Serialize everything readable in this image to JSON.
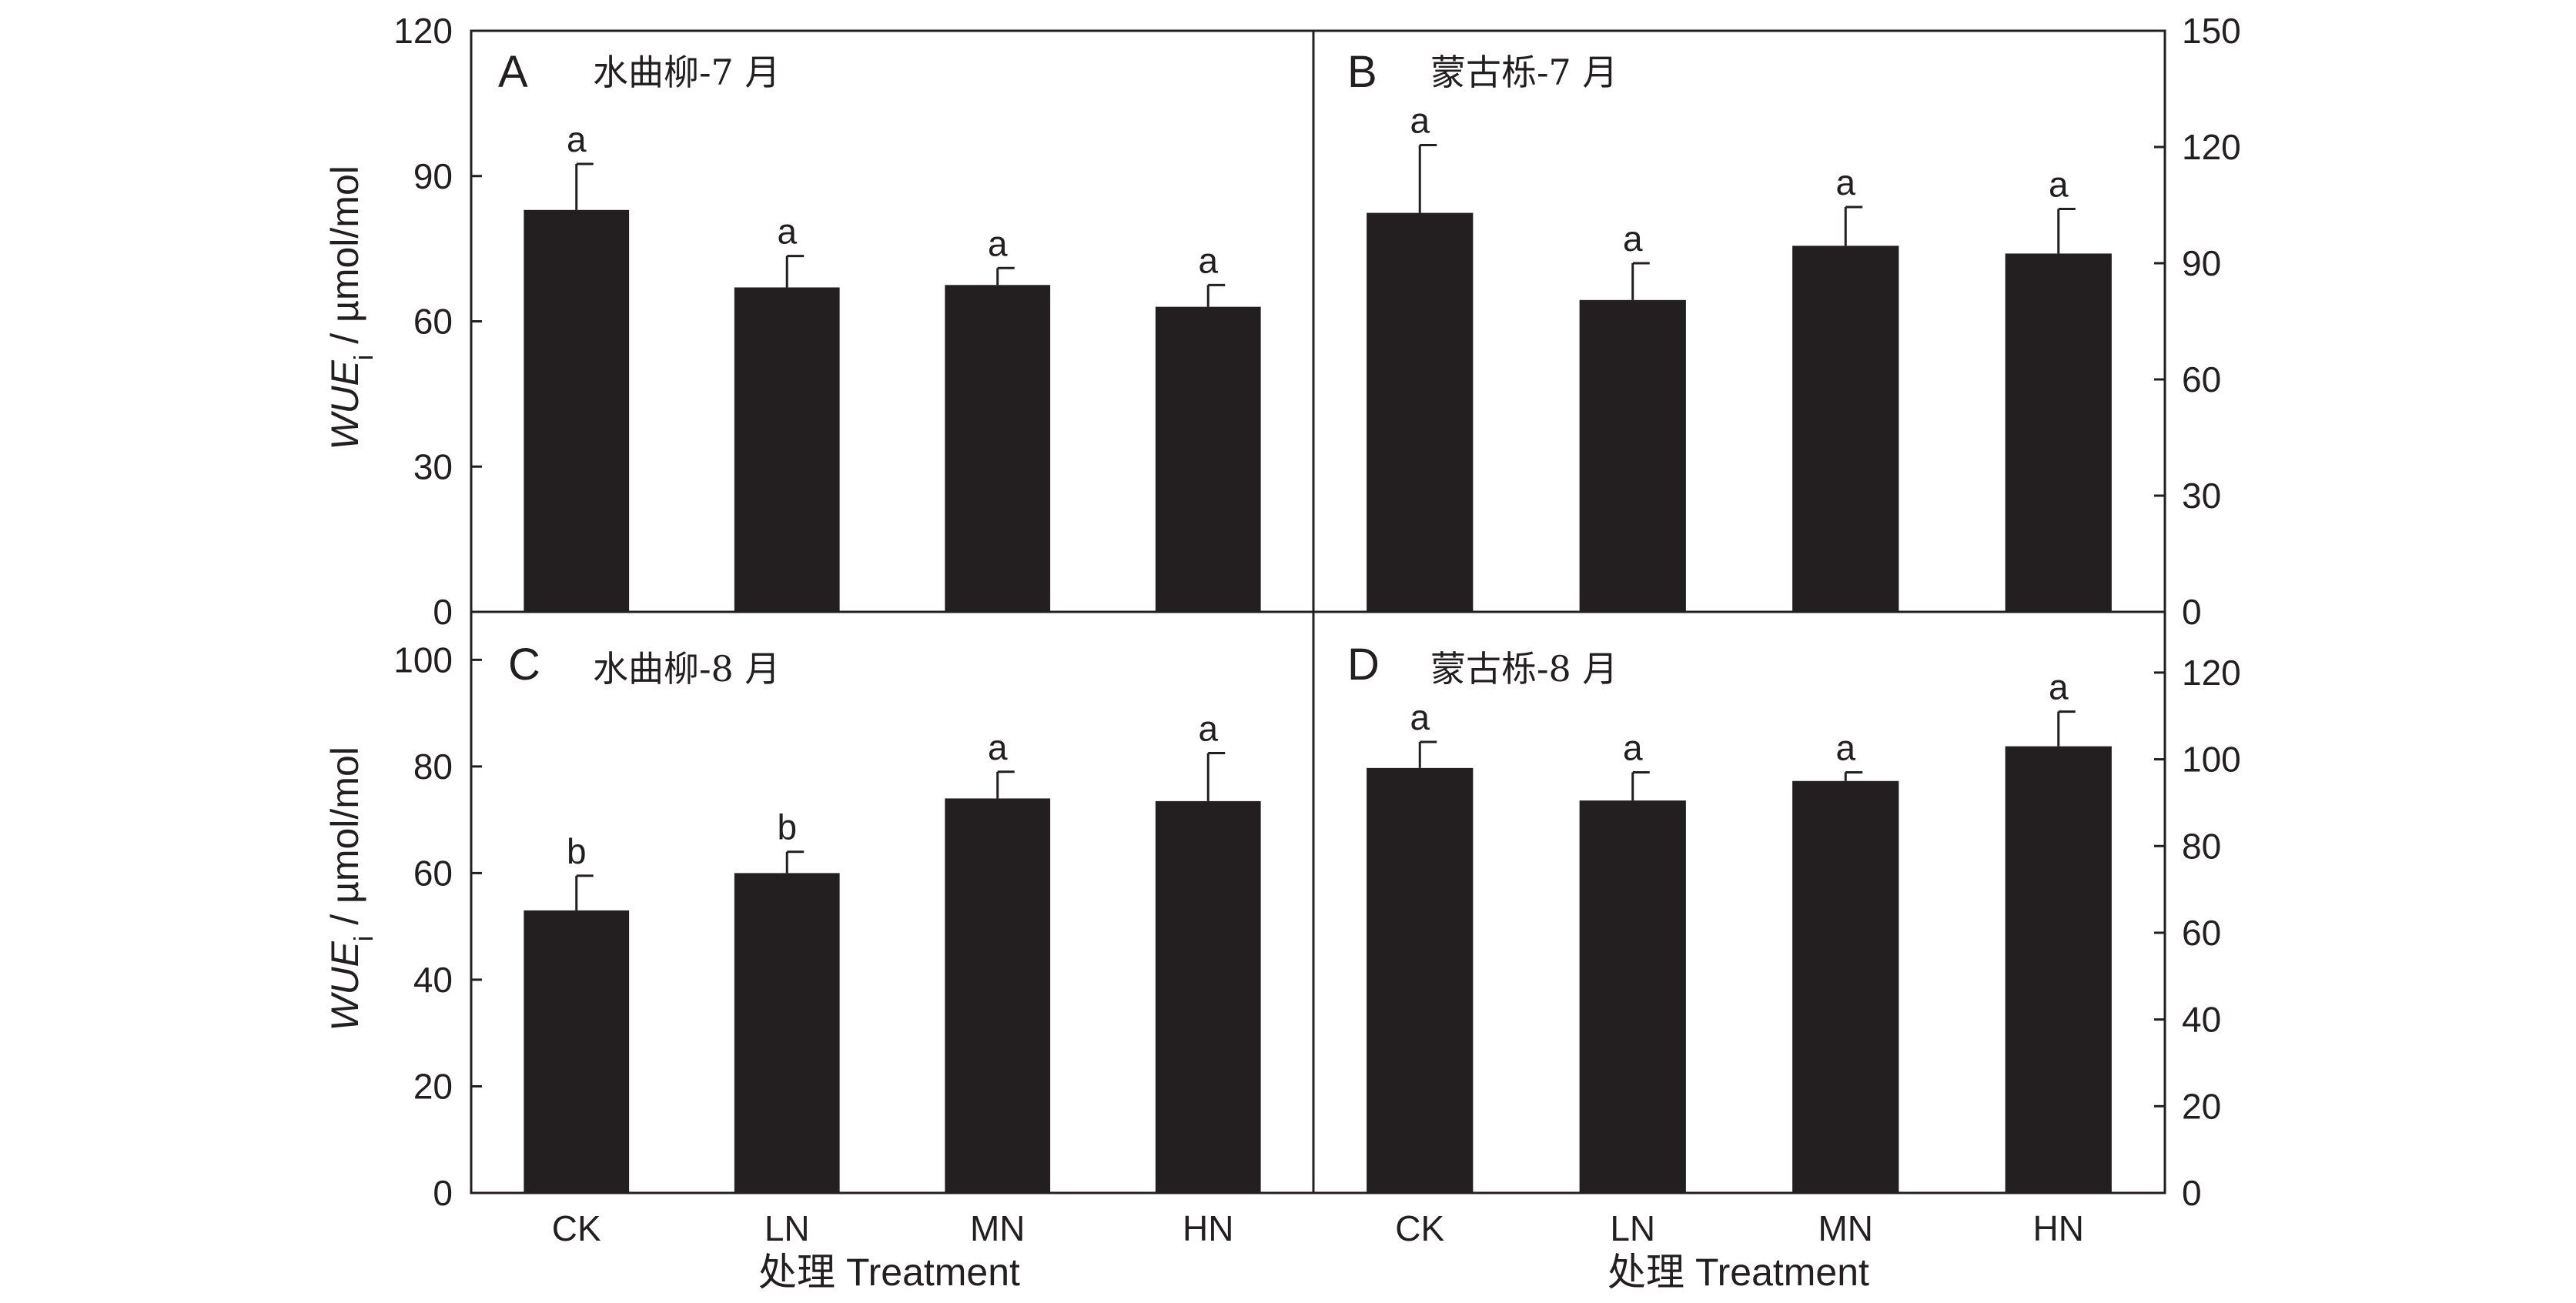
{
  "chart_data": [
    {
      "type": "bar",
      "panel": "A",
      "title": "水曲柳-7 月",
      "ylabel": "WUE",
      "ylabel_sub": "i",
      "ylabel_unit": " / µmol/mol",
      "categories": [
        "CK",
        "LN",
        "MN",
        "HN"
      ],
      "values": [
        83,
        67,
        67.5,
        63
      ],
      "errors": [
        9.5,
        6.5,
        3.5,
        4.5
      ],
      "letters": [
        "a",
        "a",
        "a",
        "a"
      ],
      "ylim": [
        0,
        120
      ],
      "yticks": [
        0,
        30,
        60,
        90,
        120
      ],
      "yaxis_side": "left"
    },
    {
      "type": "bar",
      "panel": "B",
      "title": "蒙古栎-7 月",
      "categories": [
        "CK",
        "LN",
        "MN",
        "HN"
      ],
      "values": [
        103,
        80.5,
        94.5,
        92.5
      ],
      "errors": [
        17.5,
        9.5,
        10,
        11.5
      ],
      "letters": [
        "a",
        "a",
        "a",
        "a"
      ],
      "ylim": [
        0,
        150
      ],
      "yticks": [
        0,
        30,
        60,
        90,
        120,
        150
      ],
      "yaxis_side": "right"
    },
    {
      "type": "bar",
      "panel": "C",
      "title": "水曲柳-8 月",
      "ylabel": "WUE",
      "ylabel_sub": "i",
      "ylabel_unit": " / µmol/mol",
      "xlabel": "处理 Treatment",
      "categories": [
        "CK",
        "LN",
        "MN",
        "HN"
      ],
      "values": [
        53,
        60,
        74,
        73.5
      ],
      "errors": [
        6.5,
        4,
        5,
        9
      ],
      "letters": [
        "b",
        "b",
        "a",
        "a"
      ],
      "ylim": [
        0,
        109
      ],
      "yticks": [
        0,
        20,
        40,
        60,
        80,
        100
      ],
      "yaxis_side": "left"
    },
    {
      "type": "bar",
      "panel": "D",
      "title": "蒙古栎-8 月",
      "xlabel": "处理 Treatment",
      "categories": [
        "CK",
        "LN",
        "MN",
        "HN"
      ],
      "values": [
        98,
        90.5,
        95,
        103
      ],
      "errors": [
        6,
        6.5,
        2,
        8
      ],
      "letters": [
        "a",
        "a",
        "a",
        "a"
      ],
      "ylim": [
        0,
        134
      ],
      "yticks": [
        0,
        20,
        40,
        60,
        80,
        100,
        120
      ],
      "yaxis_side": "right"
    }
  ]
}
